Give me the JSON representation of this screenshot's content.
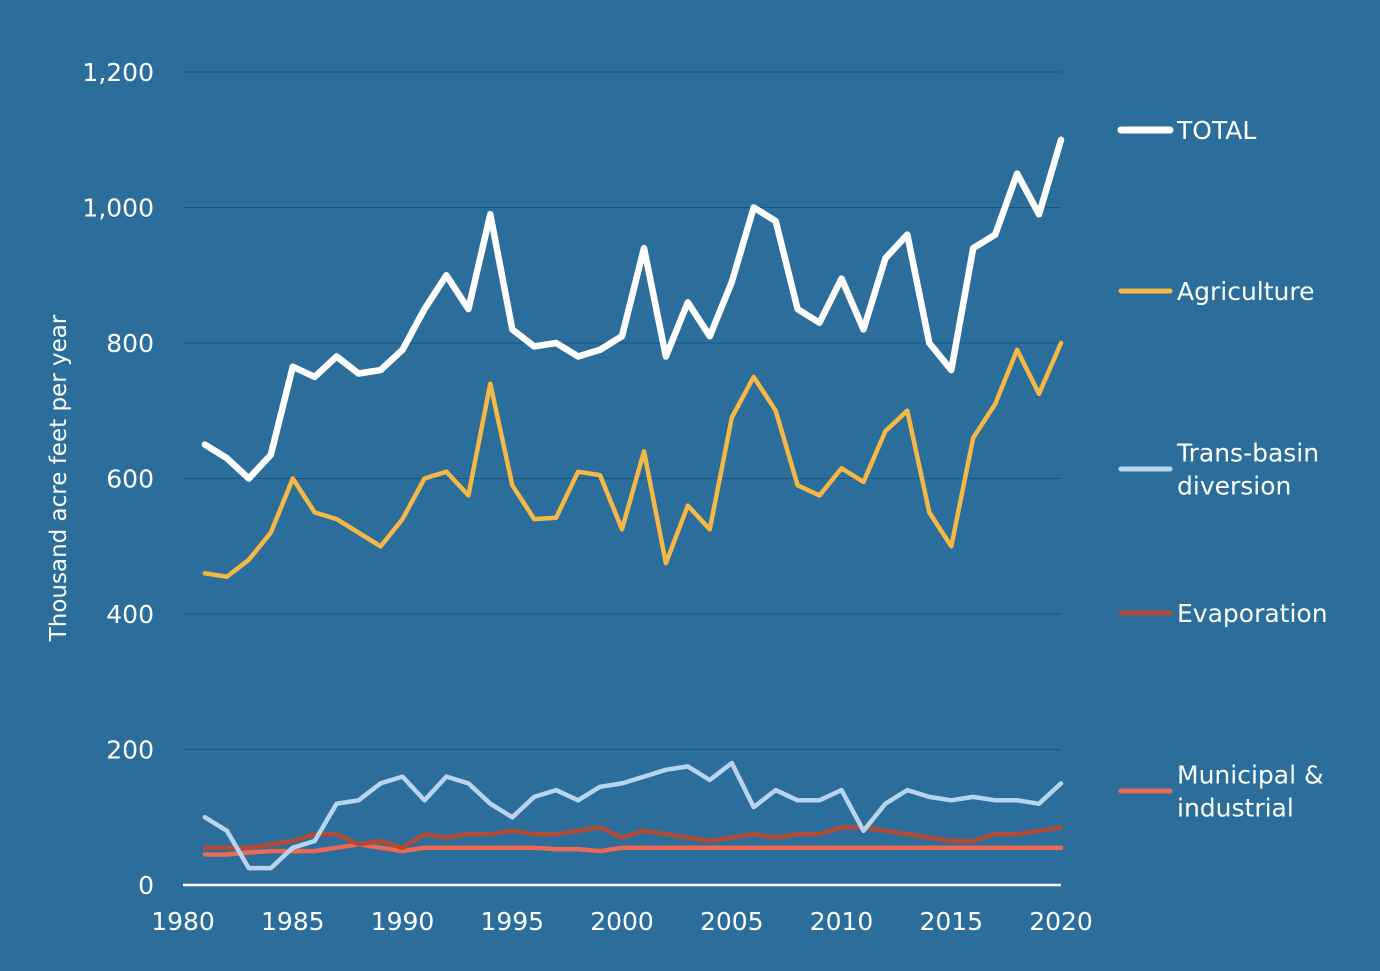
{
  "chart_data": {
    "type": "line",
    "title": "",
    "xlabel": "",
    "ylabel": "Thousand acre feet per year",
    "xlim": [
      1980,
      2020
    ],
    "ylim": [
      0,
      1200
    ],
    "x_ticks": [
      1980,
      1985,
      1990,
      1995,
      2000,
      2005,
      2010,
      2015,
      2020
    ],
    "y_ticks": [
      0,
      200,
      400,
      600,
      800,
      1000,
      1200
    ],
    "y_tick_labels": [
      "0",
      "200",
      "400",
      "600",
      "800",
      "1,000",
      "1,200"
    ],
    "grid": "horizontal",
    "legend_position": "right",
    "x": [
      1981,
      1982,
      1983,
      1984,
      1985,
      1986,
      1987,
      1988,
      1989,
      1990,
      1991,
      1992,
      1993,
      1994,
      1995,
      1996,
      1997,
      1998,
      1999,
      2000,
      2001,
      2002,
      2003,
      2004,
      2005,
      2006,
      2007,
      2008,
      2009,
      2010,
      2011,
      2012,
      2013,
      2014,
      2015,
      2016,
      2017,
      2018,
      2019,
      2020
    ],
    "series": [
      {
        "name": "TOTAL",
        "legend_lines": [
          "TOTAL"
        ],
        "color": "#ffffff",
        "values": [
          650,
          630,
          600,
          635,
          765,
          750,
          780,
          755,
          760,
          790,
          850,
          900,
          850,
          990,
          820,
          795,
          800,
          780,
          790,
          810,
          940,
          780,
          860,
          810,
          890,
          1000,
          980,
          850,
          830,
          895,
          820,
          925,
          960,
          800,
          760,
          940,
          960,
          1050,
          990,
          1100
        ]
      },
      {
        "name": "Agriculture",
        "legend_lines": [
          "Agriculture"
        ],
        "color": "#f6b845",
        "values": [
          460,
          455,
          480,
          520,
          600,
          550,
          540,
          520,
          500,
          540,
          600,
          610,
          575,
          740,
          590,
          540,
          542,
          610,
          605,
          525,
          640,
          475,
          560,
          525,
          690,
          750,
          700,
          590,
          575,
          615,
          595,
          670,
          700,
          550,
          500,
          660,
          710,
          790,
          725,
          800
        ]
      },
      {
        "name": "Trans-basin diversion",
        "legend_lines": [
          "Trans-basin",
          "diversion"
        ],
        "color": "#b9d4ee",
        "values": [
          100,
          80,
          25,
          25,
          55,
          65,
          120,
          125,
          150,
          160,
          125,
          160,
          150,
          120,
          100,
          130,
          140,
          125,
          145,
          150,
          160,
          170,
          175,
          155,
          180,
          115,
          140,
          125,
          125,
          140,
          80,
          120,
          140,
          130,
          125,
          130,
          125,
          125,
          120,
          150
        ]
      },
      {
        "name": "Evaporation",
        "legend_lines": [
          "Evaporation"
        ],
        "color": "#b04b37",
        "values": [
          55,
          55,
          55,
          60,
          65,
          75,
          75,
          60,
          65,
          55,
          75,
          70,
          75,
          75,
          80,
          75,
          75,
          80,
          85,
          70,
          80,
          75,
          70,
          65,
          70,
          75,
          70,
          75,
          75,
          85,
          85,
          80,
          75,
          70,
          65,
          65,
          75,
          75,
          80,
          85
        ]
      },
      {
        "name": "Municipal & industrial",
        "legend_lines": [
          "Municipal &",
          "industrial"
        ],
        "color": "#ea6a55",
        "values": [
          45,
          45,
          48,
          50,
          50,
          50,
          55,
          60,
          55,
          50,
          55,
          55,
          55,
          55,
          55,
          55,
          53,
          53,
          50,
          55,
          55,
          55,
          55,
          55,
          55,
          55,
          55,
          55,
          55,
          55,
          55,
          55,
          55,
          55,
          55,
          55,
          55,
          55,
          55,
          55
        ]
      }
    ]
  }
}
